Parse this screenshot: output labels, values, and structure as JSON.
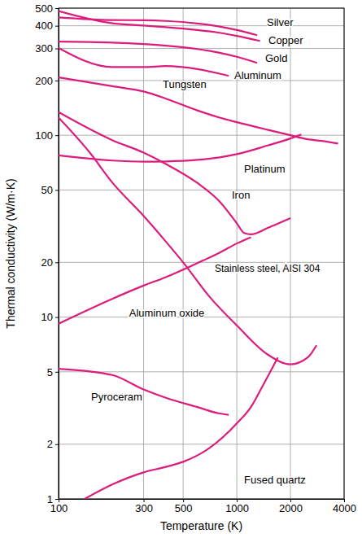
{
  "chart_data": {
    "type": "line",
    "x_label": "Temperature (K)",
    "y_label": "Thermal conductivity (W/m·K)",
    "log": true,
    "grid": true,
    "color": "#dc1c7c",
    "xlim": [
      100,
      4000
    ],
    "xticks": [
      100,
      300,
      500,
      1000,
      2000,
      4000
    ],
    "ylim": [
      1,
      500
    ],
    "yticks": [
      1,
      2,
      5,
      10,
      20,
      50,
      100,
      200,
      300,
      400,
      500
    ],
    "series": [
      {
        "name": "Silver",
        "x": [
          100,
          200,
          300,
          400,
          600,
          800,
          1000,
          1300
        ],
        "values": [
          445,
          430,
          429,
          425,
          412,
          396,
          379,
          355
        ]
      },
      {
        "name": "Copper",
        "x": [
          100,
          200,
          300,
          400,
          600,
          800,
          1000,
          1350
        ],
        "values": [
          482,
          413,
          401,
          393,
          379,
          366,
          352,
          330
        ]
      },
      {
        "name": "Gold",
        "x": [
          100,
          200,
          300,
          400,
          600,
          800,
          1000,
          1300
        ],
        "values": [
          327,
          323,
          317,
          311,
          298,
          284,
          270,
          250
        ]
      },
      {
        "name": "Aluminum",
        "x": [
          100,
          200,
          300,
          400,
          600,
          800,
          900
        ],
        "values": [
          302,
          237,
          237,
          240,
          231,
          218,
          212
        ]
      },
      {
        "name": "Tungsten",
        "x": [
          100,
          200,
          300,
          400,
          600,
          800,
          1000,
          1500,
          2000,
          2500,
          3000,
          3700
        ],
        "values": [
          208,
          186,
          174,
          159,
          137,
          125,
          118,
          107,
          100,
          95,
          93,
          90
        ]
      },
      {
        "name": "Platinum",
        "x": [
          100,
          200,
          300,
          400,
          600,
          800,
          1000,
          1500,
          2000,
          2300
        ],
        "values": [
          77.5,
          72.6,
          71.6,
          71.8,
          73.2,
          75.6,
          78.7,
          88,
          96,
          101
        ]
      },
      {
        "name": "Iron",
        "x": [
          100,
          200,
          300,
          400,
          600,
          800,
          1000,
          1100,
          1200,
          1500,
          2000
        ],
        "values": [
          134,
          94,
          80.2,
          69.5,
          54.7,
          43.3,
          32.8,
          29,
          28.5,
          31,
          35
        ]
      },
      {
        "name": "Stainless steel, AISI 304",
        "x": [
          100,
          200,
          300,
          400,
          600,
          800,
          1000,
          1200
        ],
        "values": [
          9.2,
          12.6,
          14.9,
          16.6,
          19.8,
          22.6,
          25.4,
          27.5
        ]
      },
      {
        "name": "Aluminum oxide",
        "x": [
          100,
          150,
          200,
          300,
          400,
          500,
          700,
          1000,
          1500,
          2000,
          2500,
          2800
        ],
        "values": [
          125,
          80,
          55,
          36,
          26,
          20,
          13,
          9,
          6.2,
          5.5,
          6,
          7
        ]
      },
      {
        "name": "Pyroceram",
        "x": [
          100,
          200,
          300,
          400,
          600,
          800,
          900
        ],
        "values": [
          5.2,
          4.8,
          4.0,
          3.6,
          3.2,
          2.95,
          2.9
        ]
      },
      {
        "name": "Fused quartz",
        "x": [
          140,
          200,
          300,
          400,
          500,
          700,
          1000,
          1200,
          1400,
          1700
        ],
        "values": [
          1,
          1.2,
          1.4,
          1.5,
          1.6,
          1.9,
          2.6,
          3.2,
          4.2,
          6
        ]
      }
    ]
  }
}
